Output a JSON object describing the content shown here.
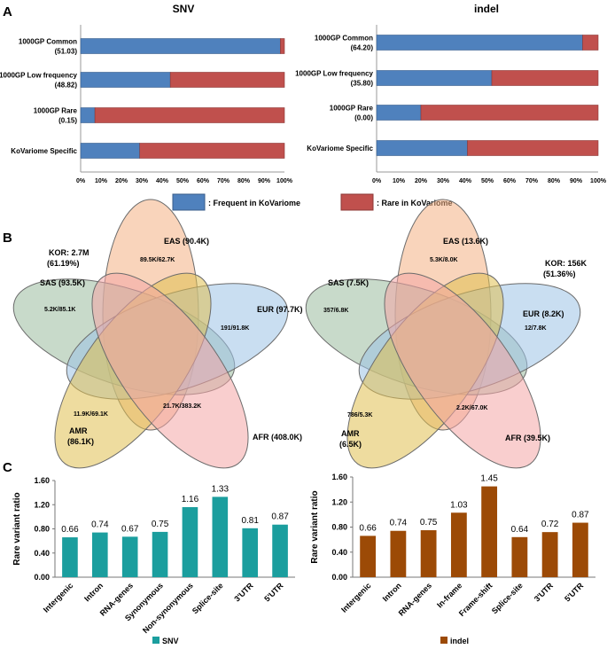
{
  "panels": {
    "a": "A",
    "b": "B",
    "c": "C"
  },
  "chart_data": [
    {
      "type": "bar",
      "stacked": true,
      "orientation": "horizontal",
      "title": "SNV",
      "categories": [
        [
          "1000GP Common",
          "(51.03)"
        ],
        [
          "1000GP Low frequency",
          "(48.82)"
        ],
        [
          "1000GP Rare",
          "(0.15)"
        ],
        [
          "KoVariome Specific"
        ]
      ],
      "series": [
        {
          "name": ": Frequent in KoVariome",
          "values": [
            98,
            44,
            7,
            29
          ]
        },
        {
          "name": ": Rare in KoVariome",
          "values": [
            2,
            56,
            93,
            71
          ]
        }
      ],
      "xlim": [
        0,
        100
      ],
      "xticks": [
        "0%",
        "10%",
        "20%",
        "30%",
        "40%",
        "50%",
        "60%",
        "70%",
        "80%",
        "90%",
        "100%"
      ]
    },
    {
      "type": "bar",
      "stacked": true,
      "orientation": "horizontal",
      "title": "indel",
      "categories": [
        [
          "1000GP Common",
          "(64.20)"
        ],
        [
          "1000GP Low frequency",
          "(35.80)"
        ],
        [
          "1000GP Rare",
          "(0.00)"
        ],
        [
          "KoVariome Specific"
        ]
      ],
      "series": [
        {
          "name": ": Frequent in KoVariome",
          "values": [
            93,
            52,
            20,
            41
          ]
        },
        {
          "name": ": Rare in KoVariome",
          "values": [
            7,
            48,
            80,
            59
          ]
        }
      ],
      "xlim": [
        0,
        100
      ],
      "xticks": [
        "0%",
        "10%",
        "20%",
        "30%",
        "40%",
        "50%",
        "60%",
        "70%",
        "80%",
        "90%",
        "100%"
      ]
    },
    {
      "type": "venn",
      "sets": [
        [
          "EAS (90.4K)"
        ],
        [
          "SAS (93.5K)"
        ],
        [
          "EUR (97.7K)"
        ],
        [
          "AMR",
          "(86.1K)"
        ],
        [
          "AFR (408.0K)"
        ],
        [
          "KOR: 2.7M",
          "(61.19%)"
        ]
      ],
      "values": [
        "89.5K/62.7K",
        "5.2K/85.1K",
        "191/91.8K",
        "11.9K/69.1K",
        "21.7K/383.2K"
      ]
    },
    {
      "type": "venn",
      "sets": [
        [
          "EAS (13.6K)"
        ],
        [
          "SAS (7.5K)"
        ],
        [
          "EUR (8.2K)"
        ],
        [
          "AMR",
          "(6.5K)"
        ],
        [
          "AFR (39.5K)"
        ],
        [
          "KOR: 156K",
          "(51.36%)"
        ]
      ],
      "values": [
        "5.3K/8.0K",
        "357/6.8K",
        "12/7.8K",
        "786/5.3K",
        "2.2K/67.0K"
      ]
    },
    {
      "type": "bar",
      "series_name": "SNV",
      "categories": [
        "Intergenic",
        "Intron",
        "RNA-genes",
        "Synonymous",
        "Non-synonymous",
        "Splice-site",
        "3'UTR",
        "5'UTR"
      ],
      "values": [
        0.66,
        0.74,
        0.67,
        0.75,
        1.16,
        1.33,
        0.81,
        0.87
      ],
      "labels": [
        "0.66",
        "0.74",
        "0.67",
        "0.75",
        "1.16",
        "1.33",
        "0.81",
        "0.87"
      ],
      "ylabel": "Rare variant ratio",
      "ylim": [
        0,
        1.6
      ],
      "yticks": [
        "0.00",
        "0.40",
        "0.80",
        "1.20",
        "1.60"
      ],
      "color": "#1b9e9e"
    },
    {
      "type": "bar",
      "series_name": "indel",
      "categories": [
        "Intergenic",
        "Intron",
        "RNA-genes",
        "In-frame",
        "Frame-shift",
        "Splice-site",
        "3'UTR",
        "5'UTR"
      ],
      "values": [
        0.66,
        0.74,
        0.75,
        1.03,
        1.45,
        0.64,
        0.72,
        0.87
      ],
      "labels": [
        "0.66",
        "0.74",
        "0.75",
        "1.03",
        "1.45",
        "0.64",
        "0.72",
        "0.87"
      ],
      "ylabel": "Rare variant ratio",
      "ylim": [
        0,
        1.6
      ],
      "yticks": [
        "0.00",
        "0.40",
        "0.80",
        "1.20",
        "1.60"
      ],
      "color": "#9c4a06"
    }
  ],
  "colors": {
    "frequent": "#4f81bd",
    "rare": "#c0504d",
    "frequent_edge": "#385d8a",
    "rare_edge": "#8c3836",
    "eas": "#f4b183",
    "sas": "#9bbb9f",
    "eur": "#9dc3e6",
    "amr": "#e0c050",
    "afr": "#f4a6a6"
  }
}
